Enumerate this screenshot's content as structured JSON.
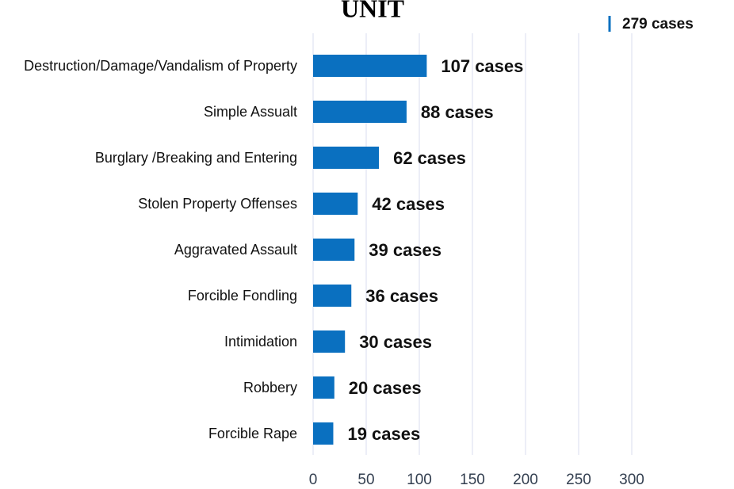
{
  "chart_data": {
    "type": "bar",
    "orientation": "horizontal",
    "title": "UNIT",
    "annotation": "279 cases",
    "categories": [
      "Destruction/Damage/Vandalism of Property",
      "Simple Assualt",
      "Burglary /Breaking and Entering",
      "Stolen Property Offenses",
      "Aggravated Assault",
      "Forcible Fondling",
      "Intimidation",
      "Robbery",
      "Forcible Rape"
    ],
    "values": [
      107,
      88,
      62,
      42,
      39,
      36,
      30,
      20,
      19
    ],
    "value_labels": [
      "107 cases",
      "88 cases",
      "62 cases",
      "42 cases",
      "39 cases",
      "36 cases",
      "30 cases",
      "20 cases",
      "19 cases"
    ],
    "color": "#0a70c0",
    "xlim": [
      0,
      300
    ],
    "xticks": [
      0,
      50,
      100,
      150,
      200,
      250,
      300
    ],
    "grid": true
  }
}
